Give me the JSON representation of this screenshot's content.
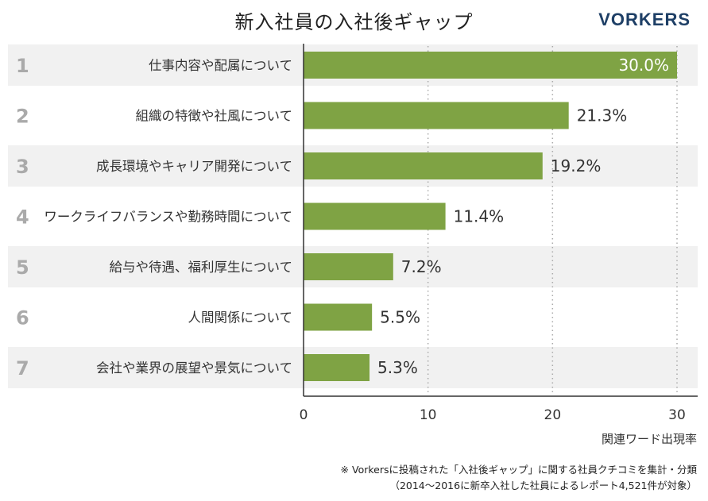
{
  "header": {
    "title": "新入社員の入社後ギャップ",
    "logo_text": "VORKERS"
  },
  "colors": {
    "bar": "#7fa344",
    "band_odd": "#f1f1f1",
    "band_even": "#ffffff",
    "rank": "#aaaaaa",
    "logo": "#1e3f66"
  },
  "chart_data": {
    "type": "bar",
    "orientation": "horizontal",
    "ranks": [
      "1",
      "2",
      "3",
      "4",
      "5",
      "6",
      "7"
    ],
    "categories": [
      "仕事内容や配属について",
      "組織の特徴や社風について",
      "成長環境やキャリア開発について",
      "ワークライフバランスや勤務時間について",
      "給与や待遇、福利厚生について",
      "人間関係について",
      "会社や業界の展望や景気について"
    ],
    "values": [
      30.0,
      21.3,
      19.2,
      11.4,
      7.2,
      5.5,
      5.3
    ],
    "value_labels": [
      "30.0%",
      "21.3%",
      "19.2%",
      "11.4%",
      "7.2%",
      "5.5%",
      "5.3%"
    ],
    "xlim": [
      0,
      30
    ],
    "xticks": [
      "0",
      "10",
      "20",
      "30"
    ],
    "xlabel": "関連ワード出現率",
    "grid": "vertical dotted"
  },
  "footnote": {
    "line1": "※ Vorkersに投稿された「入社後ギャップ」に関する社員クチコミを集計・分類",
    "line2": "（2014～2016に新卒入社した社員によるレポート4,521件が対象）"
  }
}
